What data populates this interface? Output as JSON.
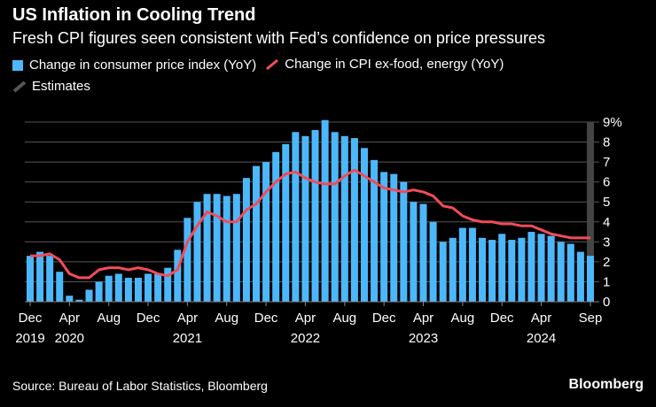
{
  "title": "US Inflation in Cooling Trend",
  "subtitle": "Fresh CPI figures seen consistent with Fed’s confidence on price pressures",
  "source": "Source: Bureau of Labor Statistics, Bloomberg",
  "logo": "Bloomberg",
  "chart_data": {
    "type": "bar",
    "title": "US Inflation in Cooling Trend",
    "ylim": [
      0,
      9
    ],
    "yticks": [
      "0",
      "1",
      "2",
      "3",
      "4",
      "5",
      "6",
      "7",
      "8",
      "9%"
    ],
    "grid": true,
    "legend_placement": "top-left",
    "xtick_labels": [
      [
        "Dec",
        "2019"
      ],
      [
        "Apr",
        "2020"
      ],
      [
        "Aug",
        ""
      ],
      [
        "Dec",
        ""
      ],
      [
        "Apr",
        "2021"
      ],
      [
        "Aug",
        ""
      ],
      [
        "Dec",
        ""
      ],
      [
        "Apr",
        "2022"
      ],
      [
        "Aug",
        ""
      ],
      [
        "Dec",
        ""
      ],
      [
        "Apr",
        "2023"
      ],
      [
        "Aug",
        ""
      ],
      [
        "Dec",
        ""
      ],
      [
        "Apr",
        "2024"
      ],
      [
        "Sep",
        ""
      ]
    ],
    "x_start": "2019-12",
    "x_end": "2024-09",
    "series": [
      {
        "name": "Change in consumer price index (YoY)",
        "type": "bar",
        "color": "#4cb8fb",
        "values": [
          2.3,
          2.5,
          2.3,
          1.5,
          0.3,
          0.1,
          0.6,
          1.0,
          1.3,
          1.4,
          1.2,
          1.2,
          1.4,
          1.4,
          1.7,
          2.6,
          4.2,
          5.0,
          5.4,
          5.4,
          5.3,
          5.4,
          6.2,
          6.8,
          7.0,
          7.5,
          7.9,
          8.5,
          8.3,
          8.6,
          9.1,
          8.5,
          8.3,
          8.2,
          7.7,
          7.1,
          6.5,
          6.4,
          6.0,
          5.0,
          4.9,
          4.0,
          3.0,
          3.2,
          3.7,
          3.7,
          3.2,
          3.1,
          3.4,
          3.1,
          3.2,
          3.5,
          3.4,
          3.3,
          3.0,
          2.9,
          2.5,
          2.3
        ]
      },
      {
        "name": "Change in CPI ex-food, energy (YoY)",
        "type": "line",
        "color": "#f44b5a",
        "values": [
          2.3,
          2.3,
          2.4,
          2.1,
          1.4,
          1.2,
          1.2,
          1.6,
          1.7,
          1.7,
          1.6,
          1.7,
          1.6,
          1.4,
          1.3,
          1.6,
          3.0,
          3.8,
          4.5,
          4.3,
          4.0,
          4.0,
          4.6,
          4.9,
          5.5,
          6.0,
          6.4,
          6.5,
          6.2,
          6.0,
          5.9,
          5.9,
          6.3,
          6.6,
          6.3,
          6.0,
          5.7,
          5.6,
          5.5,
          5.6,
          5.5,
          5.3,
          4.8,
          4.7,
          4.3,
          4.1,
          4.0,
          4.0,
          3.9,
          3.9,
          3.8,
          3.8,
          3.6,
          3.4,
          3.3,
          3.2,
          3.2,
          3.2
        ]
      },
      {
        "name": "Estimates",
        "type": "band",
        "color": "#444444",
        "months": [
          "2024-09"
        ]
      }
    ]
  }
}
